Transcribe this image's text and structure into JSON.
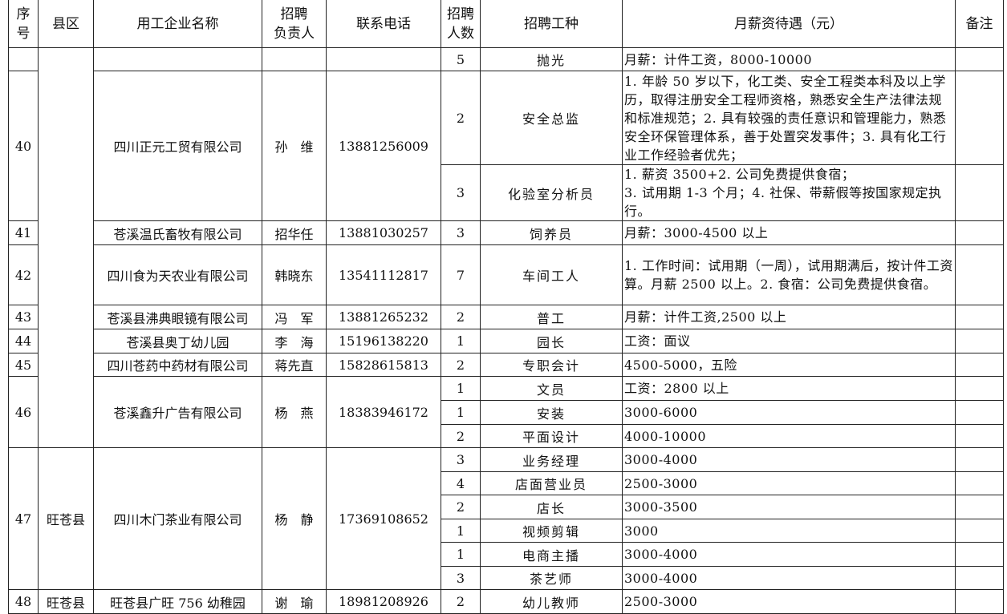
{
  "headers": [
    "序号",
    "县区",
    "用工企业名称",
    "招聘负责人",
    "联系电话",
    "招聘人数",
    "招聘工种",
    "月薪资待遇（元）",
    "备注"
  ],
  "header_lines": {
    "seq": [
      "序",
      "号"
    ],
    "contact": [
      "招聘",
      "负责人"
    ],
    "count": [
      "招聘",
      "人数"
    ]
  },
  "companies": [
    {
      "seq": "",
      "county": "",
      "name": "",
      "contact": "",
      "phone": "",
      "jobs": [
        {
          "count": "5",
          "title": "抛光",
          "salary": "月薪：计件工资，8000-10000"
        }
      ]
    },
    {
      "seq": "40",
      "county": "",
      "name": "四川正元工贸有限公司",
      "contact": "孙　维",
      "phone": "13881256009",
      "jobs": [
        {
          "count": "2",
          "title": "安全总监",
          "salary": "1. 年龄 50 岁以下，化工类、安全工程类本科及以上学历，取得注册安全工程师资格，熟悉安全生产法律法规和标准规范；2. 具有较强的责任意识和管理能力，熟悉安全环保管理体系，善于处置突发事件；3. 具有化工行业工作经验者优先；"
        },
        {
          "count": "3",
          "title": "化验室分析员",
          "salary": "1. 薪资 3500+2. 公司免费提供食宿；\n3. 试用期 1-3 个月；4. 社保、带薪假等按国家规定执行。"
        }
      ]
    },
    {
      "seq": "41",
      "county": "",
      "name": "苍溪温氏畜牧有限公司",
      "contact": "招华任",
      "phone": "13881030257",
      "jobs": [
        {
          "count": "3",
          "title": "饲养员",
          "salary": "月薪：3000-4500 以上"
        }
      ]
    },
    {
      "seq": "42",
      "county": "",
      "name": "四川食为天农业有限公司",
      "contact": "韩晓东",
      "phone": "13541112817",
      "jobs": [
        {
          "count": "7",
          "title": "车间工人",
          "salary": "1. 工作时间：试用期（一周），试用期满后，按计件工资算。月薪 2500 以上。2. 食宿：公司免费提供食宿。"
        }
      ]
    },
    {
      "seq": "43",
      "county": "",
      "name": "苍溪县沸典眼镜有限公司",
      "contact": "冯　军",
      "phone": "13881265232",
      "jobs": [
        {
          "count": "2",
          "title": "普工",
          "salary": "月薪：计件工资,2500 以上"
        }
      ]
    },
    {
      "seq": "44",
      "county": "",
      "name": "苍溪县奥丁幼儿园",
      "contact": "李　海",
      "phone": "15196138220",
      "jobs": [
        {
          "count": "1",
          "title": "园长",
          "salary": "工资：面议"
        }
      ]
    },
    {
      "seq": "45",
      "county": "",
      "name": "四川苍药中药材有限公司",
      "contact": "蒋先直",
      "phone": "15828615813",
      "jobs": [
        {
          "count": "2",
          "title": "专职会计",
          "salary": "4500-5000，五险"
        }
      ]
    },
    {
      "seq": "46",
      "county": "",
      "name": "苍溪鑫升广告有限公司",
      "contact": "杨　燕",
      "phone": "18383946172",
      "jobs": [
        {
          "count": "1",
          "title": "文员",
          "salary": "工资：2800 以上"
        },
        {
          "count": "1",
          "title": "安装",
          "salary": "3000-6000"
        },
        {
          "count": "2",
          "title": "平面设计",
          "salary": "4000-10000"
        }
      ]
    },
    {
      "seq": "47",
      "county": "旺苍县",
      "name": "四川木门茶业有限公司",
      "contact": "杨　静",
      "phone": "17369108652",
      "jobs": [
        {
          "count": "3",
          "title": "业务经理",
          "salary": "3000-4000"
        },
        {
          "count": "4",
          "title": "店面营业员",
          "salary": "2500-3000"
        },
        {
          "count": "2",
          "title": "店长",
          "salary": "3000-3500"
        },
        {
          "count": "1",
          "title": "视频剪辑",
          "salary": "3000"
        },
        {
          "count": "1",
          "title": "电商主播",
          "salary": "3000-4000"
        },
        {
          "count": "3",
          "title": "茶艺师",
          "salary": "3000-4000"
        }
      ]
    },
    {
      "seq": "48",
      "county": "旺苍县",
      "name": "旺苍县广旺 756 幼稚园",
      "contact": "谢　瑜",
      "phone": "18981208926",
      "jobs": [
        {
          "count": "2",
          "title": "幼儿教师",
          "salary": "2500-3000"
        }
      ]
    }
  ]
}
